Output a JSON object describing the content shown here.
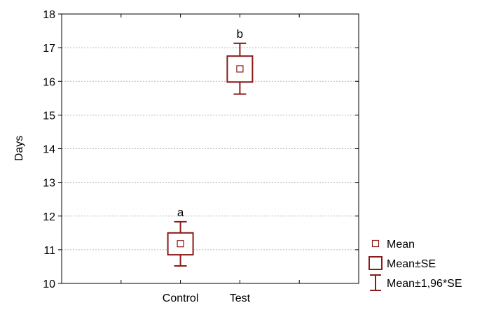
{
  "chart_data": {
    "type": "box",
    "ylabel": "Days",
    "xlabel": "",
    "categories": [
      "Control",
      "Test"
    ],
    "ylim": [
      10,
      18
    ],
    "yticks": [
      10,
      11,
      12,
      13,
      14,
      15,
      16,
      17,
      18
    ],
    "grid": true,
    "legend_position": "right",
    "series": [
      {
        "category": "Control",
        "mean": 11.18,
        "se_low": 10.85,
        "se_high": 11.5,
        "ci_low": 10.52,
        "ci_high": 11.83,
        "group_label": "a"
      },
      {
        "category": "Test",
        "mean": 16.37,
        "se_low": 15.98,
        "se_high": 16.75,
        "ci_low": 15.62,
        "ci_high": 17.13,
        "group_label": "b"
      }
    ],
    "legend": [
      {
        "key": "mean",
        "label": "Mean"
      },
      {
        "key": "se",
        "label": "Mean±SE"
      },
      {
        "key": "ci",
        "label": "Mean±1,96*SE"
      }
    ]
  },
  "colors": {
    "series": "#8b1a1a",
    "frame": "#000000",
    "grid": "#b8b8b8",
    "background": "#ffffff"
  }
}
